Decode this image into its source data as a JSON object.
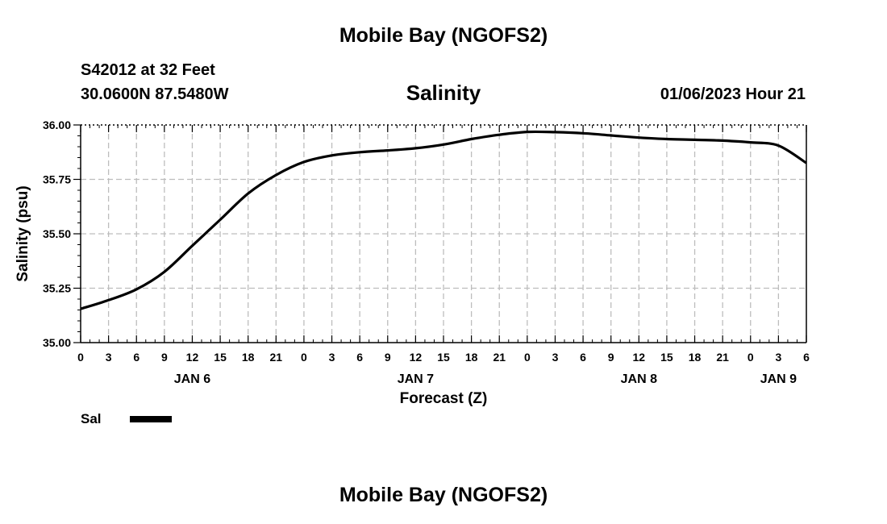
{
  "header": {
    "title": "Mobile Bay (NGOFS2)",
    "station": "S42012 at 32 Feet",
    "coords": "30.0600N  87.5480W",
    "variable": "Salinity",
    "datetime": "01/06/2023 Hour 21"
  },
  "footer": {
    "title": "Mobile Bay (NGOFS2)"
  },
  "legend": {
    "label": "Sal",
    "color": "#000000"
  },
  "chart_data": {
    "type": "line",
    "title": "Salinity",
    "xlabel": "Forecast (Z)",
    "ylabel": "Salinity (psu)",
    "ylim": [
      35.0,
      36.0
    ],
    "yticks": [
      "35.00",
      "35.25",
      "35.50",
      "35.75",
      "36.00"
    ],
    "xlim_hours": [
      0,
      78
    ],
    "xtick_labels": [
      "0",
      "3",
      "6",
      "9",
      "12",
      "15",
      "18",
      "21",
      "0",
      "3",
      "6",
      "9",
      "12",
      "15",
      "18",
      "21",
      "0",
      "3",
      "6",
      "9",
      "12",
      "15",
      "18",
      "21",
      "0",
      "3",
      "6"
    ],
    "day_labels": [
      {
        "label": "JAN 6",
        "hour": 12
      },
      {
        "label": "JAN 7",
        "hour": 36
      },
      {
        "label": "JAN 8",
        "hour": 60
      },
      {
        "label": "JAN 9",
        "hour": 75
      }
    ],
    "grid": true,
    "series": [
      {
        "name": "Sal",
        "color": "#000000",
        "x_hours": [
          0,
          3,
          6,
          9,
          12,
          15,
          18,
          21,
          24,
          27,
          30,
          33,
          36,
          39,
          42,
          45,
          48,
          51,
          54,
          57,
          60,
          63,
          66,
          69,
          72,
          75,
          78
        ],
        "values": [
          35.155,
          35.195,
          35.245,
          35.325,
          35.445,
          35.565,
          35.685,
          35.77,
          35.83,
          35.86,
          35.875,
          35.883,
          35.893,
          35.91,
          35.935,
          35.955,
          35.968,
          35.967,
          35.962,
          35.952,
          35.942,
          35.935,
          35.932,
          35.928,
          35.92,
          35.905,
          35.825
        ]
      }
    ]
  }
}
